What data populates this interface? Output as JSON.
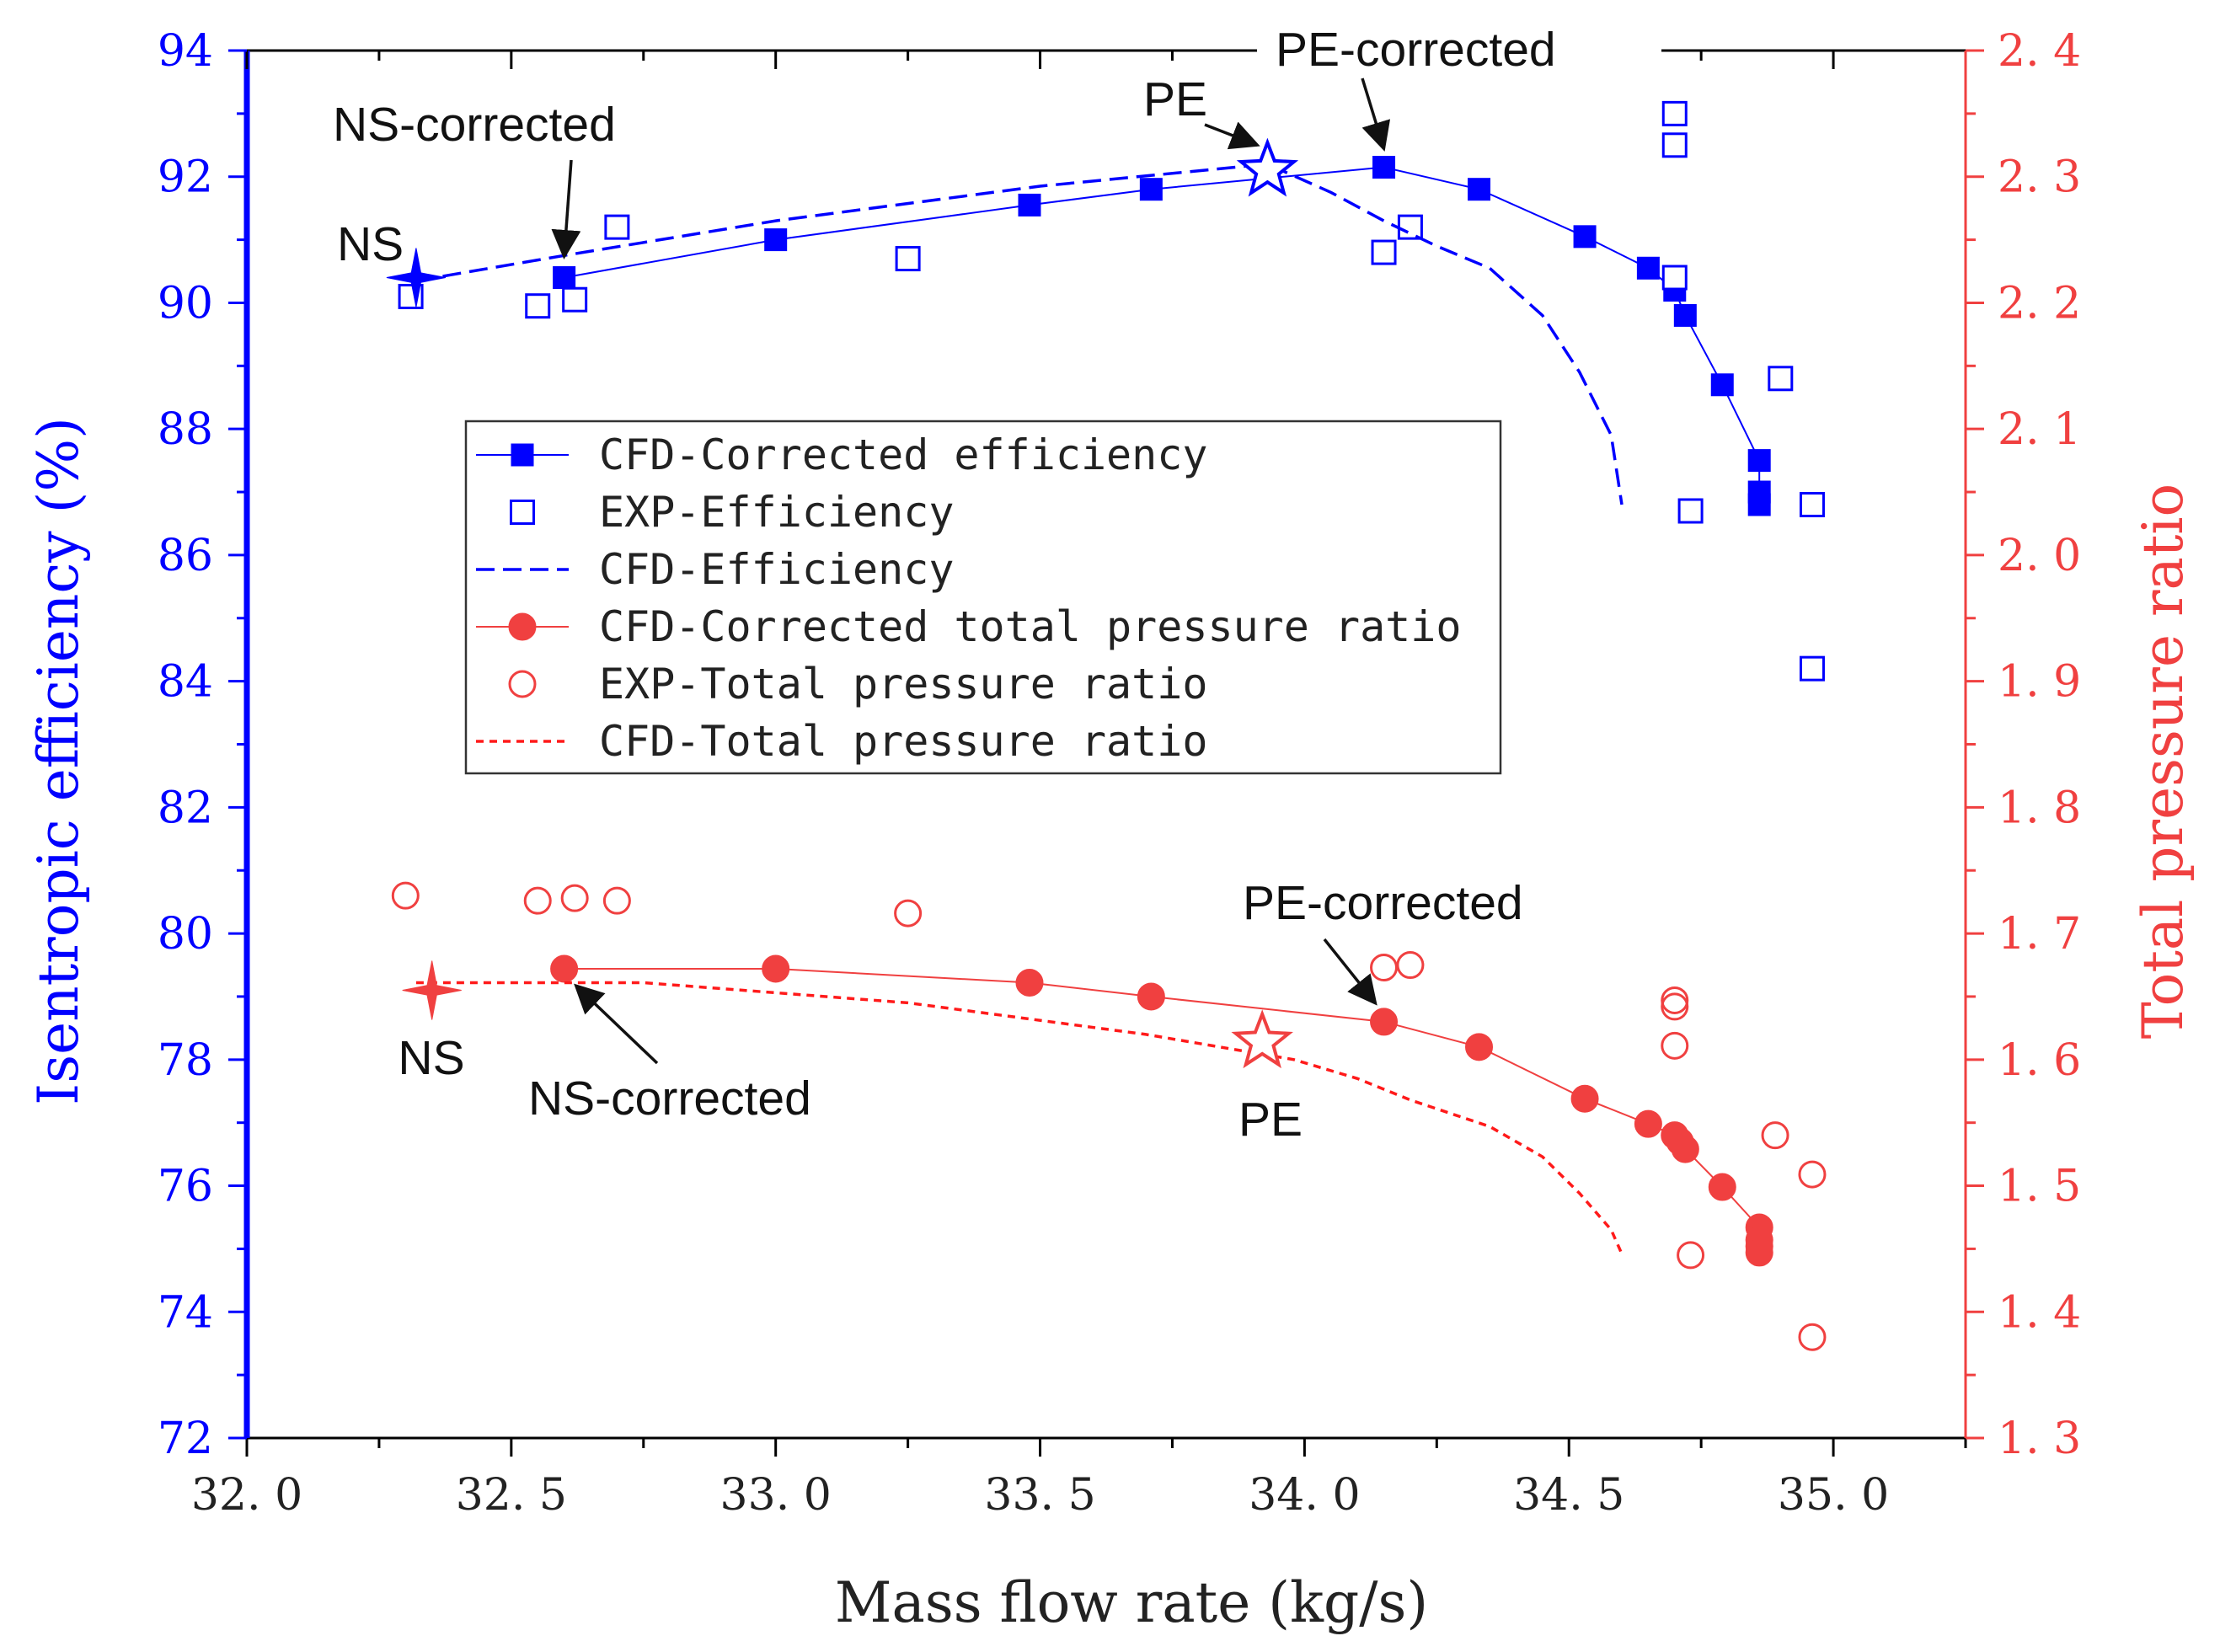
{
  "chart_data": {
    "type": "scatter",
    "title": "",
    "xlabel": "Mass flow rate (kg/s)",
    "ylabel_left": "Isentropic efficiency (%)",
    "ylabel_right": "Total pressure ratio",
    "xlim": [
      32.0,
      35.25
    ],
    "ylim_left": [
      72,
      94
    ],
    "ylim_right": [
      1.3,
      2.4
    ],
    "x_ticks": [
      32.0,
      32.5,
      33.0,
      33.5,
      34.0,
      34.5,
      35.0
    ],
    "x_tick_labels": [
      "32. 0",
      "32. 5",
      "33. 0",
      "33. 5",
      "34. 0",
      "34. 5",
      "35. 0"
    ],
    "y_left_ticks": [
      72,
      74,
      76,
      78,
      80,
      82,
      84,
      86,
      88,
      90,
      92,
      94
    ],
    "y_left_tick_labels": [
      "72",
      "74",
      "76",
      "78",
      "80",
      "82",
      "84",
      "86",
      "88",
      "90",
      "92",
      "94"
    ],
    "y_right_ticks": [
      1.3,
      1.4,
      1.5,
      1.6,
      1.7,
      1.8,
      1.9,
      2.0,
      2.1,
      2.2,
      2.3,
      2.4
    ],
    "y_right_tick_labels": [
      "1. 3",
      "1. 4",
      "1. 5",
      "1. 6",
      "1. 7",
      "1. 8",
      "1. 9",
      "2. 0",
      "2. 1",
      "2. 2",
      "2. 3",
      "2. 4"
    ],
    "colors": {
      "blue": "#0000ff",
      "red": "#f04040",
      "dash_red": "#ff1a1a"
    },
    "legend": {
      "position": "center-left",
      "entries": [
        "CFD-Corrected efficiency",
        "EXP-Efficiency",
        "CFD-Efficiency",
        "CFD-Corrected total pressure ratio",
        "EXP-Total pressure ratio",
        "CFD-Total pressure ratio"
      ]
    },
    "series": [
      {
        "name": "CFD-Corrected efficiency",
        "axis": "left",
        "style": "line-filled-square",
        "x": [
          32.6,
          33.0,
          33.48,
          33.71,
          34.15,
          34.33,
          34.53,
          34.65,
          34.7,
          34.72,
          34.79,
          34.86,
          34.86,
          34.86
        ],
        "y": [
          90.4,
          91.0,
          91.55,
          91.8,
          92.15,
          91.8,
          91.05,
          90.55,
          90.2,
          89.8,
          88.7,
          87.5,
          87.0,
          86.8
        ]
      },
      {
        "name": "EXP-Efficiency",
        "axis": "left",
        "style": "open-square",
        "x": [
          32.31,
          32.55,
          32.62,
          32.7,
          33.25,
          34.15,
          34.2,
          34.7,
          34.7,
          34.7,
          34.73,
          34.9,
          34.96,
          34.96
        ],
        "y": [
          90.1,
          89.95,
          90.05,
          91.2,
          90.7,
          90.8,
          91.2,
          93.0,
          92.5,
          90.4,
          86.7,
          88.8,
          86.8,
          84.2
        ]
      },
      {
        "name": "CFD-Efficiency",
        "axis": "left",
        "style": "dashed",
        "x": [
          32.32,
          32.6,
          33.0,
          33.5,
          33.93,
          34.05,
          34.15,
          34.25,
          34.35,
          34.45,
          34.52,
          34.58,
          34.6
        ],
        "y": [
          90.35,
          90.75,
          91.3,
          91.85,
          92.2,
          91.75,
          91.3,
          90.9,
          90.55,
          89.8,
          88.9,
          87.9,
          86.8
        ]
      },
      {
        "name": "CFD-Corrected total pressure ratio",
        "axis": "right",
        "style": "line-filled-circle",
        "x": [
          32.6,
          33.0,
          33.48,
          33.71,
          34.15,
          34.33,
          34.53,
          34.65,
          34.7,
          34.71,
          34.72,
          34.79,
          34.86,
          34.86,
          34.86,
          34.86
        ],
        "y": [
          1.672,
          1.672,
          1.661,
          1.65,
          1.63,
          1.61,
          1.569,
          1.549,
          1.54,
          1.535,
          1.529,
          1.499,
          1.467,
          1.457,
          1.452,
          1.447
        ]
      },
      {
        "name": "EXP-Total pressure ratio",
        "axis": "right",
        "style": "open-circle",
        "x": [
          32.3,
          32.55,
          32.62,
          32.7,
          33.25,
          34.15,
          34.2,
          34.7,
          34.7,
          34.7,
          34.73,
          34.89,
          34.96,
          34.96
        ],
        "y": [
          1.73,
          1.726,
          1.728,
          1.726,
          1.716,
          1.673,
          1.675,
          1.647,
          1.642,
          1.611,
          1.445,
          1.54,
          1.509,
          1.38
        ]
      },
      {
        "name": "CFD-Total pressure ratio",
        "axis": "right",
        "style": "dotted",
        "x": [
          32.32,
          32.75,
          33.25,
          33.7,
          33.98,
          34.1,
          34.2,
          34.35,
          34.45,
          34.52,
          34.58,
          34.6
        ],
        "y": [
          1.661,
          1.661,
          1.645,
          1.62,
          1.6,
          1.585,
          1.568,
          1.547,
          1.523,
          1.494,
          1.465,
          1.446
        ]
      }
    ],
    "markers": [
      {
        "label": "NS",
        "axis": "left",
        "x": 32.32,
        "y": 90.4,
        "style": "filled-4star",
        "color": "#0000ff"
      },
      {
        "label": "PE",
        "axis": "left",
        "x": 33.93,
        "y": 92.1,
        "style": "open-star",
        "color": "#0000ff"
      },
      {
        "label": "NS",
        "axis": "right",
        "x": 32.35,
        "y": 1.655,
        "style": "filled-4star",
        "color": "#f04040"
      },
      {
        "label": "PE",
        "axis": "right",
        "x": 33.92,
        "y": 1.614,
        "style": "open-star",
        "color": "#f04040"
      }
    ],
    "annotations": [
      {
        "text": "NS-corrected",
        "axis": "left",
        "points_to": [
          32.6,
          90.4
        ]
      },
      {
        "text": "PE",
        "axis": "left",
        "points_to": [
          33.93,
          92.1
        ]
      },
      {
        "text": "PE-corrected",
        "axis": "left",
        "points_to": [
          34.15,
          92.15
        ]
      },
      {
        "text": "NS",
        "axis": "left",
        "points_to": [
          32.32,
          90.4
        ]
      },
      {
        "text": "NS-corrected",
        "axis": "right",
        "points_to": [
          32.6,
          1.672
        ]
      },
      {
        "text": "PE-corrected",
        "axis": "right",
        "points_to": [
          34.15,
          1.63
        ]
      },
      {
        "text": "NS",
        "axis": "right",
        "points_to": [
          32.35,
          1.655
        ]
      },
      {
        "text": "PE",
        "axis": "right",
        "points_to": [
          33.92,
          1.614
        ]
      }
    ]
  }
}
